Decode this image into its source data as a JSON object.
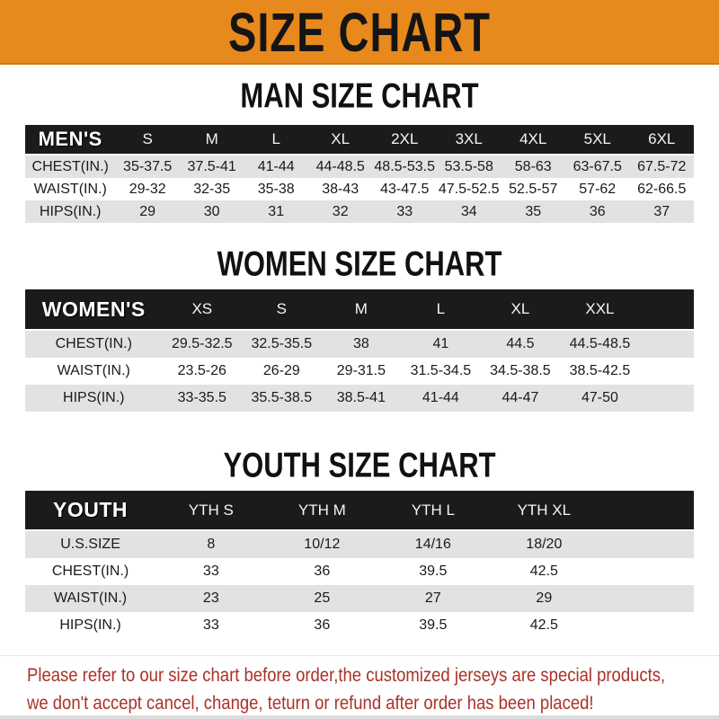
{
  "banner": {
    "title": "SIZE CHART"
  },
  "colors": {
    "banner_orange": "#E8891E",
    "header_black": "#1B1B1B",
    "row_gray": "#E2E2E2",
    "disclaimer_red": "#A93228"
  },
  "sections": [
    {
      "heading": "MAN SIZE CHART",
      "table": {
        "label": "MEN'S",
        "columns": [
          "S",
          "M",
          "L",
          "XL",
          "2XL",
          "3XL",
          "4XL",
          "5XL",
          "6XL"
        ],
        "rows": [
          {
            "label": "CHEST(IN.)",
            "values": [
              "35-37.5",
              "37.5-41",
              "41-44",
              "44-48.5",
              "48.5-53.5",
              "53.5-58",
              "58-63",
              "63-67.5",
              "67.5-72"
            ]
          },
          {
            "label": "WAIST(IN.)",
            "values": [
              "29-32",
              "32-35",
              "35-38",
              "38-43",
              "43-47.5",
              "47.5-52.5",
              "52.5-57",
              "57-62",
              "62-66.5"
            ]
          },
          {
            "label": "HIPS(IN.)",
            "values": [
              "29",
              "30",
              "31",
              "32",
              "33",
              "34",
              "35",
              "36",
              "37"
            ]
          }
        ]
      }
    },
    {
      "heading": "WOMEN SIZE CHART",
      "table": {
        "label": "WOMEN'S",
        "columns": [
          "XS",
          "S",
          "M",
          "L",
          "XL",
          "XXL"
        ],
        "rows": [
          {
            "label": "CHEST(IN.)",
            "values": [
              "29.5-32.5",
              "32.5-35.5",
              "38",
              "41",
              "44.5",
              "44.5-48.5"
            ]
          },
          {
            "label": "WAIST(IN.)",
            "values": [
              "23.5-26",
              "26-29",
              "29-31.5",
              "31.5-34.5",
              "34.5-38.5",
              "38.5-42.5"
            ]
          },
          {
            "label": "HIPS(IN.)",
            "values": [
              "33-35.5",
              "35.5-38.5",
              "38.5-41",
              "41-44",
              "44-47",
              "47-50"
            ]
          }
        ]
      }
    },
    {
      "heading": "YOUTH SIZE CHART",
      "table": {
        "label": "YOUTH",
        "columns": [
          "YTH S",
          "YTH M",
          "YTH L",
          "YTH XL"
        ],
        "rows": [
          {
            "label": "U.S.SIZE",
            "values": [
              "8",
              "10/12",
              "14/16",
              "18/20"
            ]
          },
          {
            "label": "CHEST(IN.)",
            "values": [
              "33",
              "36",
              "39.5",
              "42.5"
            ]
          },
          {
            "label": "WAIST(IN.)",
            "values": [
              "23",
              "25",
              "27",
              "29"
            ]
          },
          {
            "label": "HIPS(IN.)",
            "values": [
              "33",
              "36",
              "39.5",
              "42.5"
            ]
          }
        ]
      }
    }
  ],
  "disclaimer": {
    "line1": "Please refer to our size chart before order,the customized jerseys are special products,",
    "line2": "we don't accept cancel, change, teturn or refund after order has been placed!"
  }
}
